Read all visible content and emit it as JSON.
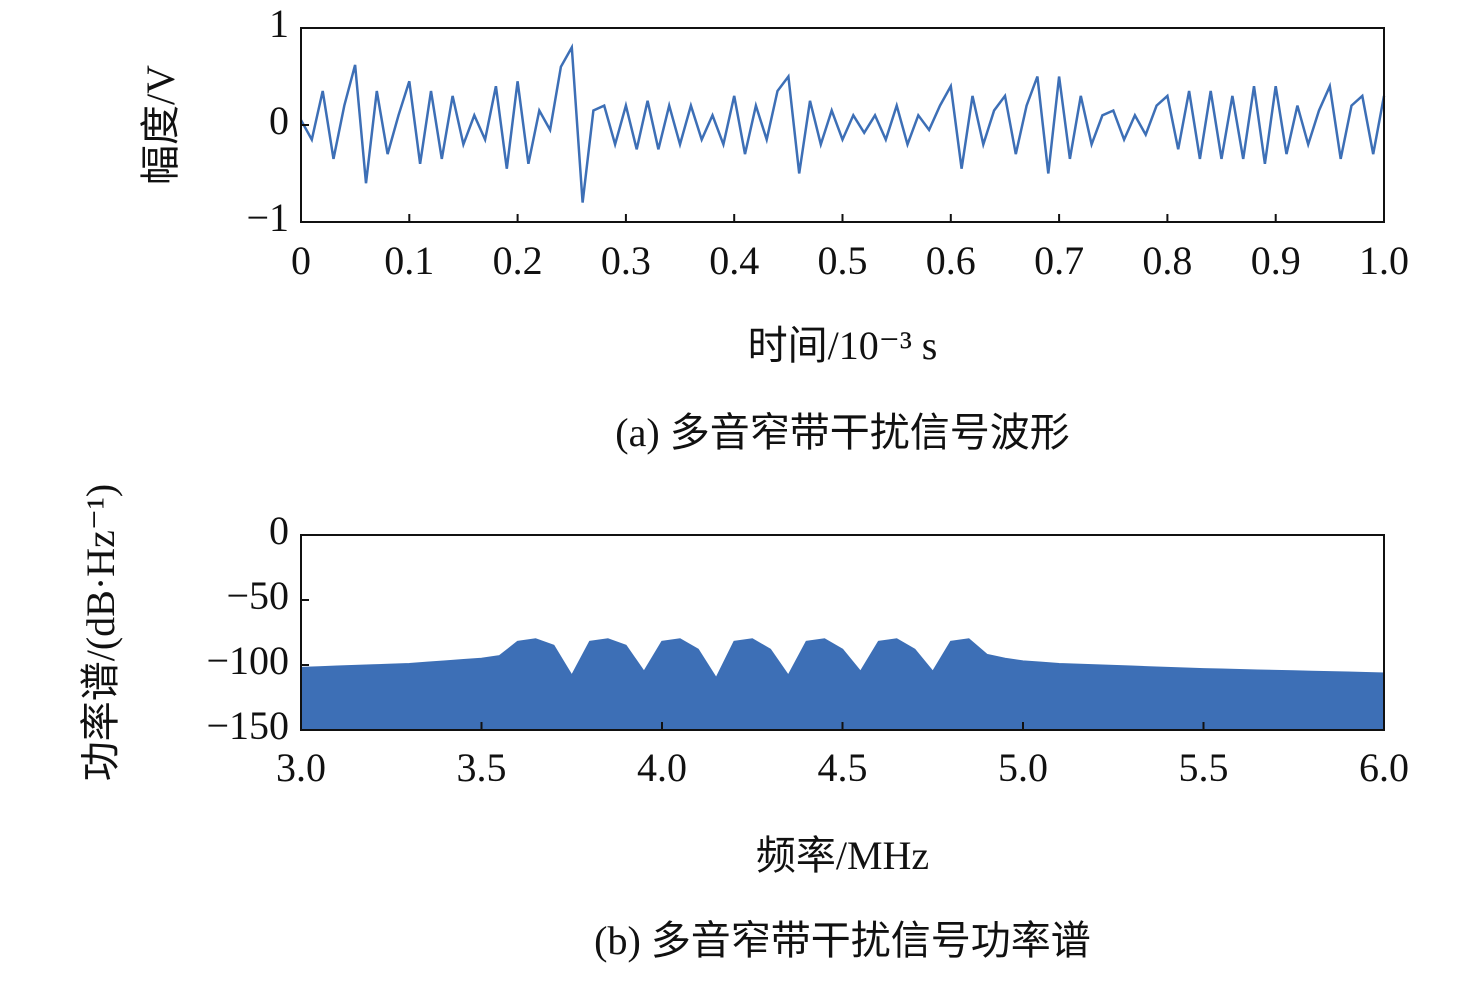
{
  "chart_data": [
    {
      "type": "line",
      "caption": "(a) 多音窄带干扰信号波形",
      "xlabel": "时间/10⁻³ s",
      "ylabel": "幅度/V",
      "color": "#3d6fb6",
      "x": [
        0,
        0.01,
        0.02,
        0.03,
        0.04,
        0.05,
        0.06,
        0.07,
        0.08,
        0.09,
        0.1,
        0.11,
        0.12,
        0.13,
        0.14,
        0.15,
        0.16,
        0.17,
        0.18,
        0.19,
        0.2,
        0.21,
        0.22,
        0.23,
        0.24,
        0.25,
        0.26,
        0.27,
        0.28,
        0.29,
        0.3,
        0.31,
        0.32,
        0.33,
        0.34,
        0.35,
        0.36,
        0.37,
        0.38,
        0.39,
        0.4,
        0.41,
        0.42,
        0.43,
        0.44,
        0.45,
        0.46,
        0.47,
        0.48,
        0.49,
        0.5,
        0.51,
        0.52,
        0.53,
        0.54,
        0.55,
        0.56,
        0.57,
        0.58,
        0.59,
        0.6,
        0.61,
        0.62,
        0.63,
        0.64,
        0.65,
        0.66,
        0.67,
        0.68,
        0.69,
        0.7,
        0.71,
        0.72,
        0.73,
        0.74,
        0.75,
        0.76,
        0.77,
        0.78,
        0.79,
        0.8,
        0.81,
        0.82,
        0.83,
        0.84,
        0.85,
        0.86,
        0.87,
        0.88,
        0.89,
        0.9,
        0.91,
        0.92,
        0.93,
        0.94,
        0.95,
        0.96,
        0.97,
        0.98,
        0.99,
        1.0
      ],
      "values": [
        0.05,
        -0.15,
        0.35,
        -0.35,
        0.2,
        0.62,
        -0.6,
        0.35,
        -0.3,
        0.1,
        0.45,
        -0.4,
        0.35,
        -0.35,
        0.3,
        -0.2,
        0.1,
        -0.15,
        0.4,
        -0.45,
        0.45,
        -0.4,
        0.15,
        -0.05,
        0.6,
        0.8,
        -0.8,
        0.15,
        0.2,
        -0.2,
        0.2,
        -0.25,
        0.25,
        -0.25,
        0.2,
        -0.2,
        0.2,
        -0.15,
        0.1,
        -0.2,
        0.3,
        -0.3,
        0.2,
        -0.15,
        0.35,
        0.5,
        -0.5,
        0.25,
        -0.2,
        0.15,
        -0.15,
        0.1,
        -0.08,
        0.1,
        -0.15,
        0.2,
        -0.2,
        0.1,
        -0.05,
        0.2,
        0.4,
        -0.45,
        0.3,
        -0.2,
        0.15,
        0.3,
        -0.3,
        0.2,
        0.5,
        -0.5,
        0.5,
        -0.35,
        0.3,
        -0.2,
        0.1,
        0.15,
        -0.15,
        0.1,
        -0.1,
        0.2,
        0.3,
        -0.25,
        0.35,
        -0.35,
        0.35,
        -0.35,
        0.3,
        -0.35,
        0.4,
        -0.4,
        0.4,
        -0.3,
        0.2,
        -0.2,
        0.15,
        0.4,
        -0.35,
        0.2,
        0.3,
        -0.3,
        0.3
      ],
      "xlim": [
        0,
        1
      ],
      "ylim": [
        -1,
        1
      ],
      "xticks": [
        0,
        0.1,
        0.2,
        0.3,
        0.4,
        0.5,
        0.6,
        0.7,
        0.8,
        0.9,
        {
          "value": 1,
          "label": "1.0"
        }
      ],
      "yticks": [
        {
          "value": -1,
          "label": "−1"
        },
        0,
        1
      ]
    },
    {
      "type": "area",
      "caption": "(b) 多音窄带干扰信号功率谱",
      "xlabel": "频率/MHz",
      "ylabel": "功率谱/(dB·Hz⁻¹)",
      "color": "#3d6fb6",
      "x": [
        3.0,
        3.05,
        3.1,
        3.15,
        3.2,
        3.25,
        3.3,
        3.35,
        3.4,
        3.45,
        3.5,
        3.55,
        3.6,
        3.65,
        3.7,
        3.75,
        3.8,
        3.85,
        3.9,
        3.95,
        4.0,
        4.05,
        4.1,
        4.15,
        4.2,
        4.25,
        4.3,
        4.35,
        4.4,
        4.45,
        4.5,
        4.55,
        4.6,
        4.65,
        4.7,
        4.75,
        4.8,
        4.85,
        4.9,
        4.95,
        5.0,
        5.05,
        5.1,
        5.15,
        5.2,
        5.25,
        5.3,
        5.35,
        5.4,
        5.45,
        5.5,
        5.55,
        5.6,
        5.65,
        5.7,
        5.75,
        5.8,
        5.85,
        5.9,
        5.95,
        6.0
      ],
      "values": [
        -102,
        -101.5,
        -101,
        -100.5,
        -100,
        -99.5,
        -99,
        -98,
        -97,
        -96,
        -95,
        -93,
        -82,
        -80,
        -85,
        -108,
        -82,
        -80,
        -85,
        -105,
        -82,
        -80,
        -88,
        -110,
        -82,
        -80,
        -88,
        -108,
        -82,
        -80,
        -88,
        -105,
        -82,
        -80,
        -88,
        -105,
        -82,
        -80,
        -92,
        -95,
        -97,
        -98,
        -99,
        -99.5,
        -100,
        -100.5,
        -101,
        -101.5,
        -102,
        -102.5,
        -103,
        -103.3,
        -103.6,
        -104,
        -104.3,
        -104.6,
        -105,
        -105.3,
        -105.6,
        -106,
        -106.3
      ],
      "xlim": [
        3,
        6
      ],
      "ylim": [
        -150,
        0
      ],
      "xticks": [
        {
          "value": 3,
          "label": "3.0"
        },
        3.5,
        {
          "value": 4,
          "label": "4.0"
        },
        4.5,
        {
          "value": 5,
          "label": "5.0"
        },
        5.5,
        {
          "value": 6,
          "label": "6.0"
        }
      ],
      "yticks": [
        0,
        {
          "value": -50,
          "label": "−50"
        },
        {
          "value": -100,
          "label": "−100"
        },
        {
          "value": -150,
          "label": "−150"
        }
      ]
    }
  ]
}
